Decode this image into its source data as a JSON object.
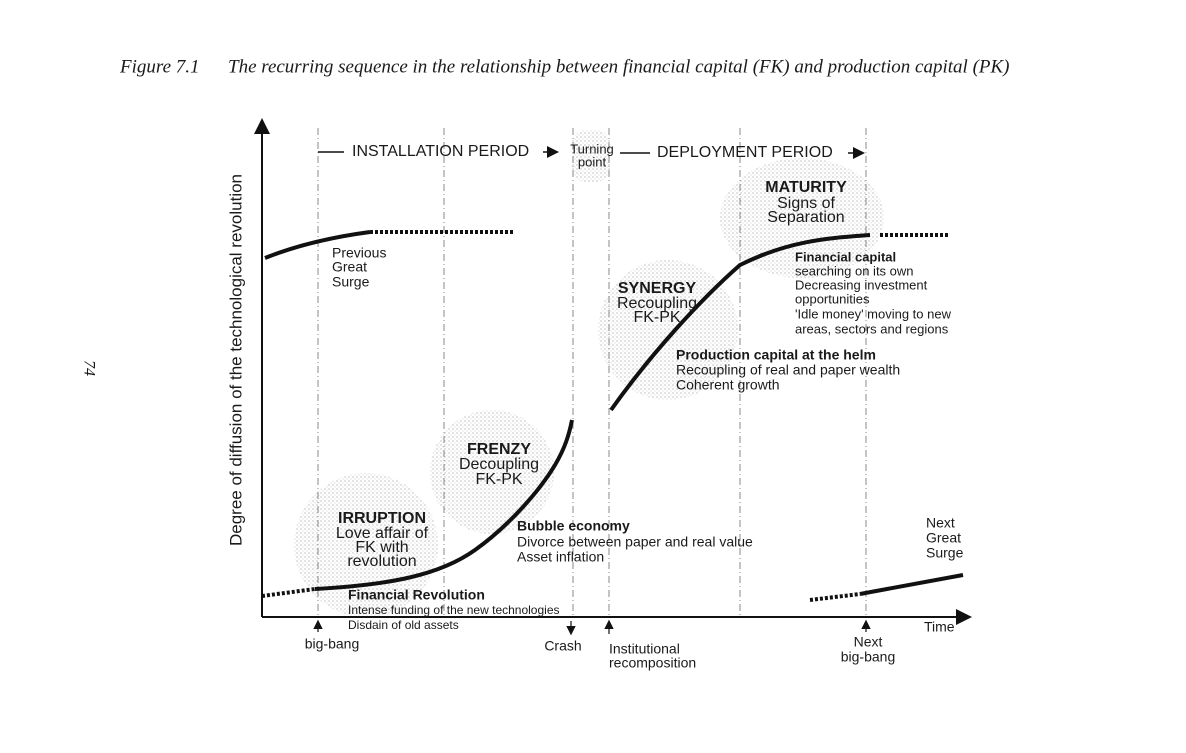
{
  "caption": {
    "label": "Figure 7.1",
    "title": "The recurring sequence in the relationship between financial capital (FK) and production capital (PK)"
  },
  "page_number": "74",
  "axes": {
    "y_label": "Degree of diffusion of the technological revolution",
    "x_label": "Time"
  },
  "periods": {
    "installation": "INSTALLATION PERIOD",
    "turning_point": [
      "Turning",
      "point"
    ],
    "deployment": "DEPLOYMENT PERIOD"
  },
  "surges": {
    "previous": [
      "Previous",
      "Great",
      "Surge"
    ],
    "next": [
      "Next",
      "Great",
      "Surge"
    ]
  },
  "phases": [
    {
      "name": "IRRUPTION",
      "lines": [
        "Love affair of",
        "FK with",
        "revolution"
      ]
    },
    {
      "name": "FRENZY",
      "lines": [
        "Decoupling",
        "FK-PK"
      ]
    },
    {
      "name": "SYNERGY",
      "lines": [
        "Recoupling",
        "FK-PK"
      ]
    },
    {
      "name": "MATURITY",
      "lines": [
        "Signs of",
        "Separation"
      ]
    }
  ],
  "notes": [
    {
      "heading": "Financial Revolution",
      "lines": [
        "Intense funding of the new technologies",
        "Disdain of old assets"
      ]
    },
    {
      "heading": "Bubble economy",
      "lines": [
        "Divorce between paper and real value",
        "Asset inflation"
      ]
    },
    {
      "heading": "Production capital at the helm",
      "lines": [
        "Recoupling of real and paper wealth",
        "Coherent growth"
      ]
    },
    {
      "heading": "Financial capital",
      "lines": [
        "searching on its own",
        "Decreasing investment",
        "opportunities",
        "'Idle money' moving to new",
        "areas, sectors and regions"
      ]
    }
  ],
  "events": [
    {
      "lines": [
        "big-bang"
      ]
    },
    {
      "lines": [
        "Crash"
      ]
    },
    {
      "lines": [
        "Institutional",
        "recomposition"
      ]
    },
    {
      "lines": [
        "Next",
        "big-bang"
      ]
    }
  ]
}
